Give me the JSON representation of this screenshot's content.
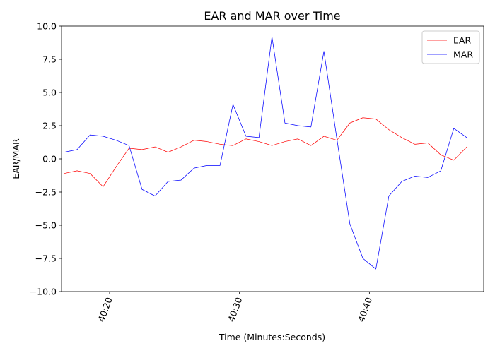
{
  "chart_data": {
    "type": "line",
    "title": "EAR and MAR over Time",
    "xlabel": "Time (Minutes:Seconds)",
    "ylabel": "EAR/MAR",
    "x_unit": "seconds after 40:00",
    "xlim": [
      16.3,
      48.8
    ],
    "ylim": [
      -10.0,
      10.0
    ],
    "x_ticks": [
      {
        "value": 20,
        "label": "40:20"
      },
      {
        "value": 30,
        "label": "40:30"
      },
      {
        "value": 40,
        "label": "40:40"
      }
    ],
    "y_ticks": [
      {
        "value": 10.0,
        "label": "10.0"
      },
      {
        "value": 7.5,
        "label": "7.5"
      },
      {
        "value": 5.0,
        "label": "5.0"
      },
      {
        "value": 2.5,
        "label": "2.5"
      },
      {
        "value": 0.0,
        "label": "0.0"
      },
      {
        "value": -2.5,
        "label": "−2.5"
      },
      {
        "value": -5.0,
        "label": "−5.0"
      },
      {
        "value": -7.5,
        "label": "−7.5"
      },
      {
        "value": -10.0,
        "label": "−10.0"
      }
    ],
    "grid": false,
    "legend": "top-right",
    "x": [
      16.5,
      17.5,
      18.5,
      19.5,
      20.5,
      21.5,
      22.5,
      23.5,
      24.5,
      25.5,
      26.5,
      27.5,
      28.5,
      29.5,
      30.5,
      31.5,
      32.5,
      33.5,
      34.5,
      35.5,
      36.5,
      37.5,
      38.5,
      39.5,
      40.5,
      41.5,
      42.5,
      43.5,
      44.5,
      45.5,
      46.5,
      47.5
    ],
    "series": [
      {
        "name": "EAR",
        "color": "#ff0000",
        "values": [
          -1.1,
          -0.9,
          -1.1,
          -2.1,
          -0.6,
          0.8,
          0.7,
          0.9,
          0.5,
          0.9,
          1.4,
          1.3,
          1.1,
          1.0,
          1.5,
          1.3,
          1.0,
          1.3,
          1.5,
          1.0,
          1.7,
          1.4,
          2.7,
          3.1,
          3.0,
          2.2,
          1.6,
          1.1,
          1.2,
          0.3,
          -0.1,
          0.9
        ]
      },
      {
        "name": "MAR",
        "color": "#0000ff",
        "values": [
          0.5,
          0.7,
          1.8,
          1.7,
          1.4,
          1.0,
          -2.3,
          -2.8,
          -1.7,
          -1.6,
          -0.7,
          -0.5,
          -0.5,
          4.1,
          1.7,
          1.6,
          9.2,
          2.7,
          2.5,
          2.4,
          8.1,
          1.5,
          -4.9,
          -7.5,
          -8.3,
          -2.8,
          -1.7,
          -1.3,
          -1.4,
          -0.9,
          2.3,
          1.6
        ]
      }
    ]
  }
}
